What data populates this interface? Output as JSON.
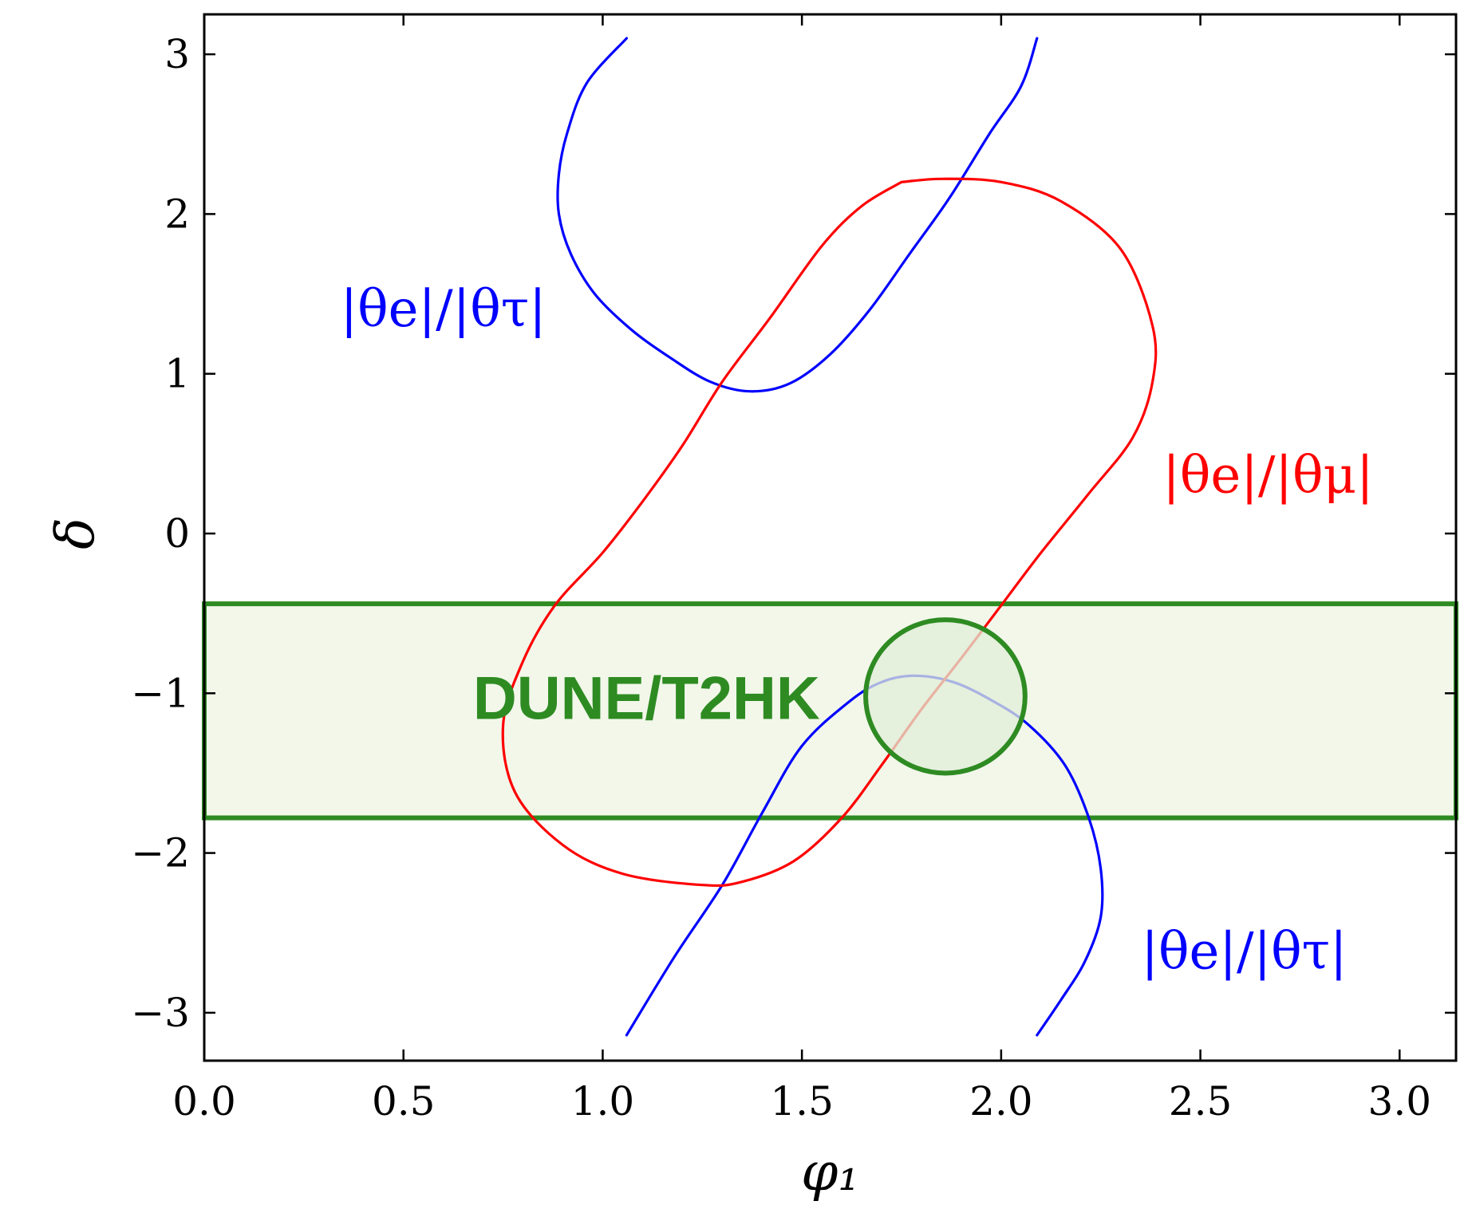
{
  "chart_data": {
    "type": "line",
    "xlabel": "φ₁",
    "ylabel": "δ",
    "xlim": [
      0.0,
      3.14159
    ],
    "ylim": [
      -3.3,
      3.25
    ],
    "xticks": [
      0.0,
      0.5,
      1.0,
      1.5,
      2.0,
      2.5,
      3.0
    ],
    "xtick_labels": [
      "0.0",
      "0.5",
      "1.0",
      "1.5",
      "2.0",
      "2.5",
      "3.0"
    ],
    "yticks": [
      -3,
      -2,
      -1,
      0,
      1,
      2,
      3
    ],
    "ytick_labels": [
      "−3",
      "−2",
      "−1",
      "0",
      "1",
      "2",
      "3"
    ],
    "grid": false,
    "series": [
      {
        "name": "|θe|/|θτ|",
        "color": "#0000ff",
        "segments": [
          [
            [
              1.06,
              3.1
            ],
            [
              0.96,
              2.82
            ],
            [
              0.91,
              2.5
            ],
            [
              0.89,
              2.25
            ],
            [
              0.89,
              2.0
            ],
            [
              0.92,
              1.75
            ],
            [
              0.98,
              1.5
            ],
            [
              1.07,
              1.28
            ],
            [
              1.17,
              1.1
            ],
            [
              1.27,
              0.95
            ],
            [
              1.37,
              0.89
            ],
            [
              1.47,
              0.94
            ],
            [
              1.57,
              1.12
            ],
            [
              1.67,
              1.4
            ],
            [
              1.77,
              1.75
            ],
            [
              1.87,
              2.1
            ],
            [
              1.97,
              2.5
            ],
            [
              2.05,
              2.8
            ],
            [
              2.09,
              3.1
            ]
          ],
          [
            [
              1.06,
              -3.14
            ],
            [
              1.18,
              -2.65
            ],
            [
              1.3,
              -2.2
            ],
            [
              1.4,
              -1.75
            ],
            [
              1.5,
              -1.33
            ],
            [
              1.62,
              -1.05
            ],
            [
              1.7,
              -0.93
            ],
            [
              1.78,
              -0.89
            ],
            [
              1.88,
              -0.93
            ],
            [
              1.98,
              -1.05
            ],
            [
              2.07,
              -1.2
            ],
            [
              2.16,
              -1.45
            ],
            [
              2.22,
              -1.78
            ],
            [
              2.25,
              -2.1
            ],
            [
              2.25,
              -2.4
            ],
            [
              2.21,
              -2.68
            ],
            [
              2.15,
              -2.92
            ],
            [
              2.09,
              -3.14
            ]
          ]
        ]
      },
      {
        "name": "|θe|/|θμ|",
        "color": "#ff0000",
        "segments": [
          [
            [
              1.75,
              2.2
            ],
            [
              1.85,
              2.22
            ],
            [
              2.0,
              2.2
            ],
            [
              2.15,
              2.08
            ],
            [
              2.3,
              1.78
            ],
            [
              2.38,
              1.3
            ],
            [
              2.38,
              0.95
            ],
            [
              2.33,
              0.6
            ],
            [
              2.22,
              0.25
            ],
            [
              2.1,
              -0.12
            ],
            [
              2.0,
              -0.45
            ],
            [
              1.9,
              -0.78
            ],
            [
              1.8,
              -1.1
            ],
            [
              1.7,
              -1.45
            ],
            [
              1.6,
              -1.78
            ],
            [
              1.48,
              -2.05
            ],
            [
              1.35,
              -2.18
            ],
            [
              1.25,
              -2.2
            ],
            [
              1.05,
              -2.13
            ],
            [
              0.9,
              -1.95
            ],
            [
              0.78,
              -1.62
            ],
            [
              0.75,
              -1.2
            ],
            [
              0.8,
              -0.8
            ],
            [
              0.88,
              -0.45
            ],
            [
              1.0,
              -0.12
            ],
            [
              1.1,
              0.2
            ],
            [
              1.2,
              0.55
            ],
            [
              1.3,
              0.95
            ],
            [
              1.42,
              1.35
            ],
            [
              1.55,
              1.8
            ],
            [
              1.65,
              2.05
            ],
            [
              1.75,
              2.2
            ]
          ]
        ]
      }
    ],
    "annotations": [
      {
        "text": "|θe|/|θτ|",
        "color": "#0000ff",
        "x": 0.6,
        "y": 1.38
      },
      {
        "text": "|θe|/|θμ|",
        "color": "#ff0000",
        "x": 2.67,
        "y": 0.34
      },
      {
        "text": "|θe|/|θτ|",
        "color": "#0000ff",
        "x": 2.61,
        "y": -2.64
      }
    ],
    "band": {
      "label": "DUNE/T2HK",
      "y_min": -1.78,
      "y_max": -0.44,
      "color": "#2e8b22",
      "fill": "#f2f7ea"
    },
    "circle": {
      "center_x": 1.86,
      "center_y": -1.02,
      "radius_x": 0.2,
      "radius_y": 0.48,
      "color": "#2e8b22",
      "fill": "#e0edd8"
    }
  }
}
